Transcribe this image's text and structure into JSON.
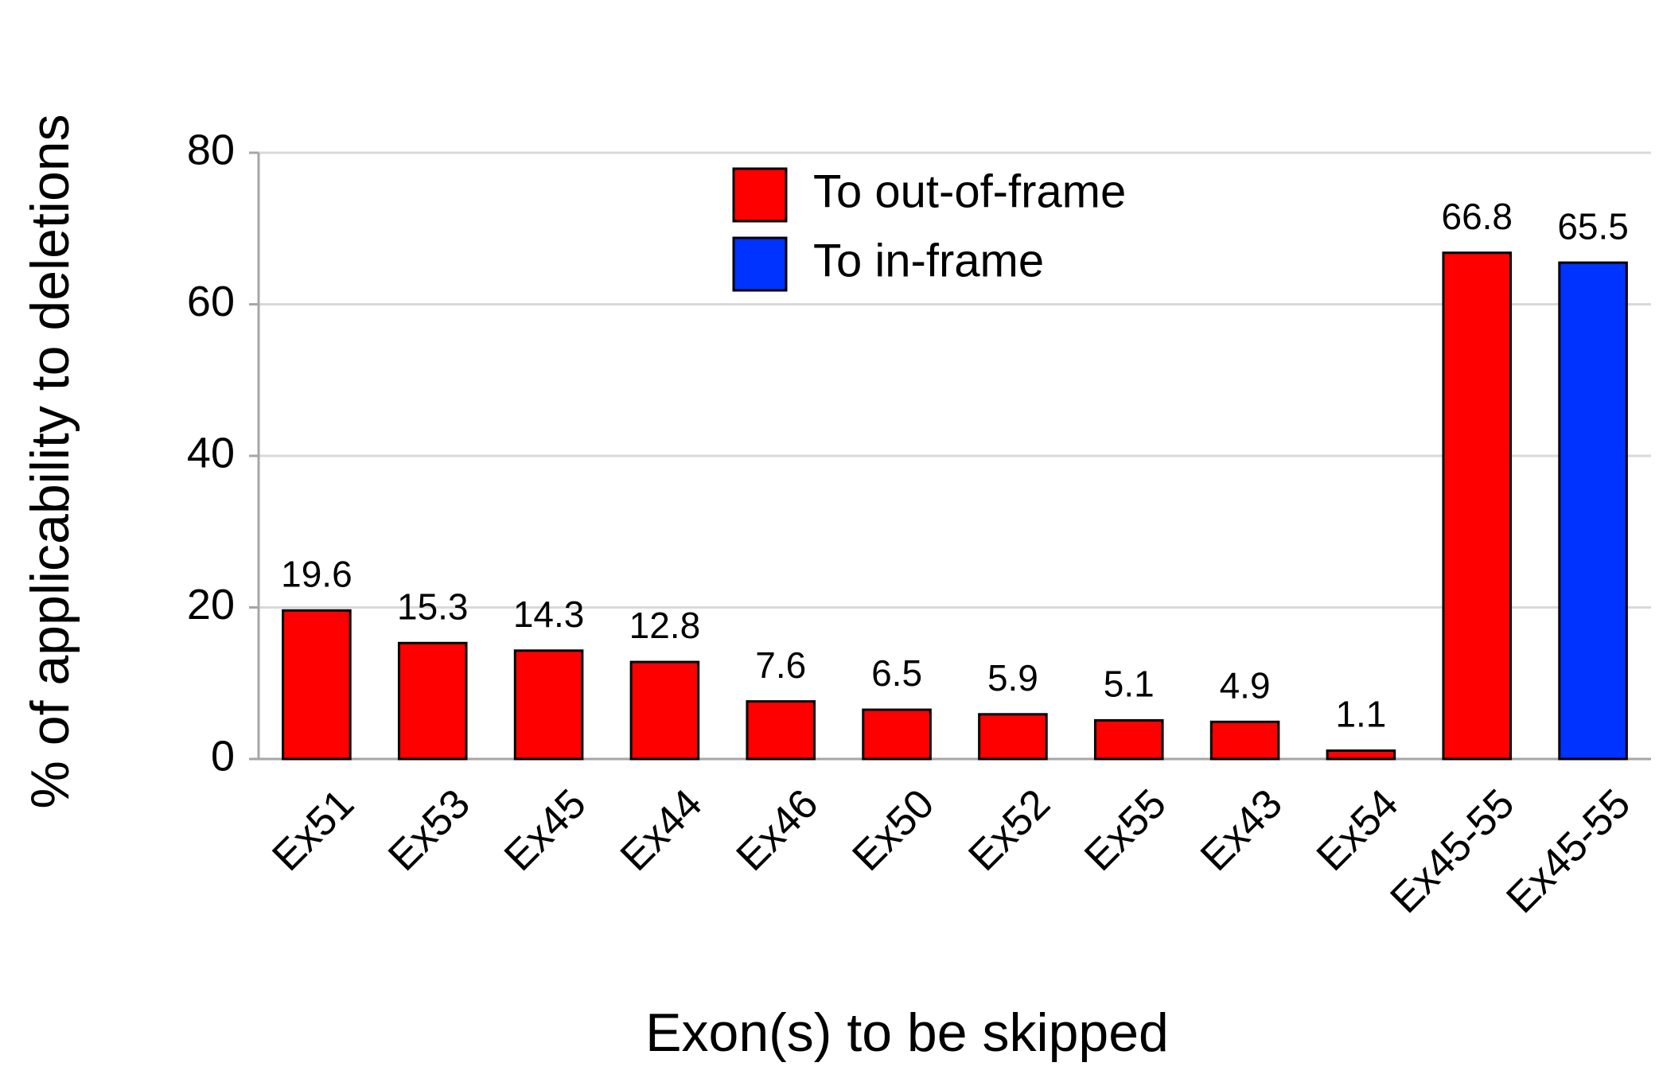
{
  "chart_data": {
    "type": "bar",
    "x_label": "Exon(s) to be skipped",
    "y_label": "% of applicability to deletions",
    "categories": [
      "Ex51",
      "Ex53",
      "Ex45",
      "Ex44",
      "Ex46",
      "Ex50",
      "Ex52",
      "Ex55",
      "Ex43",
      "Ex54",
      "Ex45-55",
      "Ex45-55"
    ],
    "series": [
      {
        "name": "To out-of-frame",
        "color": "#ff0000",
        "values": [
          19.6,
          15.3,
          14.3,
          12.8,
          7.6,
          6.5,
          5.9,
          5.1,
          4.9,
          1.1,
          66.8,
          null
        ]
      },
      {
        "name": "To in-frame",
        "color": "#0033ff",
        "values": [
          null,
          null,
          null,
          null,
          null,
          null,
          null,
          null,
          null,
          null,
          null,
          65.5
        ]
      }
    ],
    "ylim": [
      0,
      80
    ],
    "yticks": [
      0,
      20,
      40,
      60,
      80
    ],
    "grid": true
  }
}
